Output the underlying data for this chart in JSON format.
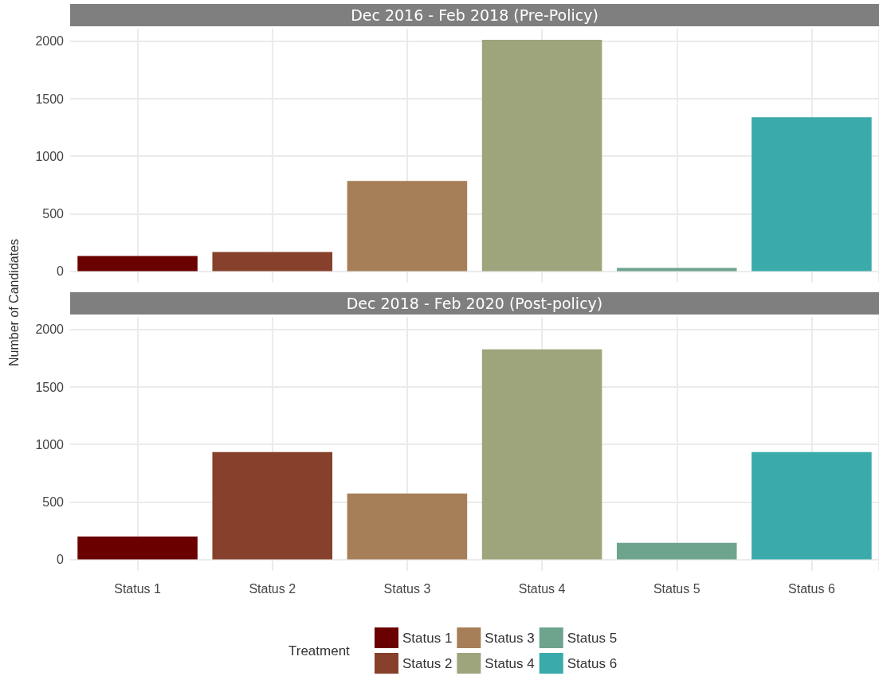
{
  "chart_data": [
    {
      "type": "bar",
      "title": "Dec 2016 - Feb 2018 (Pre-Policy)",
      "ylabel": "Number of Candidates",
      "categories": [
        null,
        null,
        null,
        null,
        null,
        null
      ],
      "values": [
        132,
        167,
        785,
        2013,
        28,
        1340
      ],
      "colors": [
        "#6b0000",
        "#86402b",
        "#a67f58",
        "#9ea47b",
        "#6ea48e",
        "#3aaaab"
      ],
      "ylim": [
        -100,
        2110
      ],
      "yticks": [
        0,
        500,
        1000,
        1500,
        2000
      ],
      "grid": true,
      "tick_labels": "y",
      "legend": false
    },
    {
      "type": "bar",
      "title": "Dec 2018 - Feb 2020 (Post-policy)",
      "categories": [
        "Status 1",
        "Status 2",
        "Status 3",
        "Status 4",
        "Status 5",
        "Status 6"
      ],
      "series": [
        {
          "name": "Status 1",
          "color": "#6b0000",
          "values": [
            200,
            null,
            null,
            null,
            null,
            null
          ]
        },
        {
          "name": "Status 2",
          "color": "#86402b",
          "values": [
            null,
            934,
            null,
            null,
            null,
            null
          ]
        },
        {
          "name": "Status 3",
          "color": "#a67f58",
          "values": [
            null,
            null,
            574,
            null,
            null,
            null
          ]
        },
        {
          "name": "Status 4",
          "color": "#9ea47b",
          "values": [
            null,
            null,
            null,
            1827,
            null,
            null
          ]
        },
        {
          "name": "Status 5",
          "color": "#6ea48e",
          "values": [
            null,
            null,
            null,
            null,
            145,
            null
          ]
        },
        {
          "name": "Status 6",
          "color": "#3aaaab",
          "values": [
            null,
            null,
            null,
            null,
            null,
            934
          ]
        }
      ],
      "ylim": [
        -100,
        2110
      ],
      "yticks": [
        0,
        500,
        1000,
        1500,
        2000
      ],
      "grid": true,
      "legend": "bottom",
      "legend_title": "Treatment"
    }
  ]
}
